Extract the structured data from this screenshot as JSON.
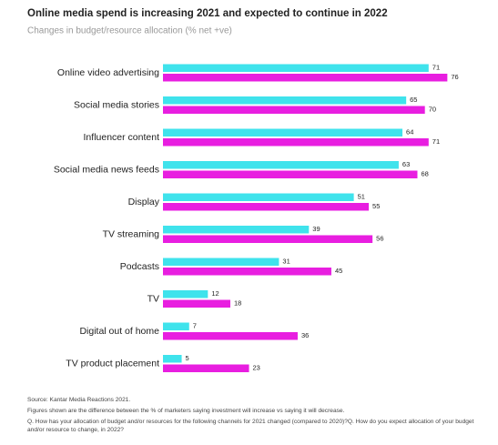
{
  "chart_data": {
    "type": "bar",
    "orientation": "horizontal",
    "title": "Online media spend is increasing 2021 and expected to continue in 2022",
    "subtitle": "Changes in budget/resource allocation (% net +ve)",
    "categories": [
      "Online video advertising",
      "Social media stories",
      "Influencer content",
      "Social media news feeds",
      "Display",
      "TV streaming",
      "Podcasts",
      "TV",
      "Digital out of home",
      "TV product placement"
    ],
    "series": [
      {
        "color": "#3fe3ec",
        "values": [
          71,
          65,
          64,
          63,
          51,
          39,
          31,
          12,
          7,
          5
        ]
      },
      {
        "color": "#e81ee0",
        "values": [
          76,
          70,
          71,
          68,
          55,
          56,
          45,
          18,
          36,
          23
        ]
      }
    ],
    "source": "Source: Kantar Media Reactions 2021.",
    "footnote": "Figures shown are the difference between the % of marketers saying investment will increase vs saying it will decrease.",
    "question": "Q. How has your allocation of budget and/or resources for the following channels for 2021 changed (compared to 2020)?Q. How do you expect allocation of your budget and/or resource to change, in 2022?"
  }
}
